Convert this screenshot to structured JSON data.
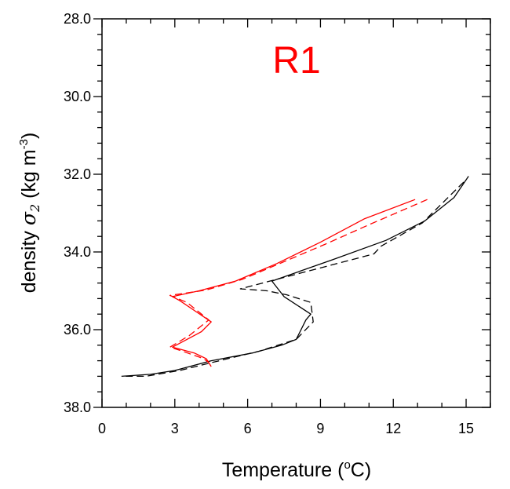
{
  "chart_data": {
    "type": "line",
    "title": "R1",
    "title_color": "#ff0000",
    "xlabel": {
      "pre": "Temperature (",
      "sup": "o",
      "post": "C)"
    },
    "ylabel": {
      "pre": "density ",
      "symbol": "σ",
      "sub": "2",
      "unit_pre": " (kg m",
      "unit_sup": "-3",
      "unit_post": ")"
    },
    "xlim": [
      0,
      16
    ],
    "ylim": [
      38.0,
      28.0
    ],
    "y_inverted": true,
    "xticks": [
      "0",
      "3",
      "6",
      "9",
      "12",
      "15"
    ],
    "xtick_values": [
      0,
      3,
      6,
      9,
      12,
      15
    ],
    "yticks": [
      "28.0",
      "30.0",
      "32.0",
      "34.0",
      "36.0",
      "38.0"
    ],
    "ytick_values": [
      28,
      30,
      32,
      34,
      36,
      38
    ],
    "grid": false,
    "series": [
      {
        "color": "#000000",
        "dash": "solid",
        "points": [
          [
            15.1,
            32.05
          ],
          [
            14.5,
            32.6
          ],
          [
            13.3,
            33.2
          ],
          [
            11.7,
            33.7
          ],
          [
            9.5,
            34.2
          ],
          [
            7.0,
            34.75
          ],
          [
            7.5,
            35.15
          ],
          [
            8.6,
            35.6
          ],
          [
            8.4,
            35.75
          ],
          [
            8.0,
            36.25
          ],
          [
            7.4,
            36.4
          ],
          [
            6.2,
            36.6
          ],
          [
            4.5,
            36.8
          ],
          [
            3.0,
            37.05
          ],
          [
            2.0,
            37.15
          ],
          [
            0.8,
            37.2
          ]
        ]
      },
      {
        "color": "#000000",
        "dash": "dashed",
        "points": [
          [
            14.9,
            32.2
          ],
          [
            13.2,
            33.25
          ],
          [
            11.5,
            33.85
          ],
          [
            11.2,
            34.05
          ],
          [
            5.7,
            34.95
          ],
          [
            6.8,
            35.0
          ],
          [
            7.6,
            35.1
          ],
          [
            8.6,
            35.3
          ],
          [
            8.7,
            35.8
          ],
          [
            8.0,
            36.25
          ],
          [
            6.5,
            36.55
          ],
          [
            4.5,
            36.85
          ],
          [
            3.2,
            37.05
          ],
          [
            1.8,
            37.2
          ],
          [
            0.9,
            37.2
          ]
        ]
      },
      {
        "color": "#ff0000",
        "dash": "solid",
        "points": [
          [
            12.9,
            32.65
          ],
          [
            10.8,
            33.15
          ],
          [
            9.0,
            33.75
          ],
          [
            7.2,
            34.3
          ],
          [
            5.5,
            34.75
          ],
          [
            4.0,
            35.0
          ],
          [
            2.9,
            35.15
          ],
          [
            3.2,
            35.25
          ],
          [
            4.5,
            35.8
          ],
          [
            4.1,
            36.05
          ],
          [
            2.9,
            36.45
          ],
          [
            3.8,
            36.6
          ],
          [
            4.3,
            36.75
          ],
          [
            4.5,
            36.95
          ]
        ]
      },
      {
        "color": "#ff0000",
        "dash": "dashed",
        "points": [
          [
            13.4,
            32.65
          ],
          [
            11.0,
            33.3
          ],
          [
            9.2,
            33.8
          ],
          [
            7.5,
            34.25
          ],
          [
            5.8,
            34.7
          ],
          [
            4.3,
            34.98
          ],
          [
            2.8,
            35.12
          ],
          [
            3.5,
            35.3
          ],
          [
            4.4,
            35.75
          ],
          [
            3.6,
            36.15
          ],
          [
            2.8,
            36.45
          ],
          [
            3.3,
            36.55
          ],
          [
            4.2,
            36.75
          ],
          [
            4.4,
            36.85
          ]
        ]
      }
    ]
  }
}
